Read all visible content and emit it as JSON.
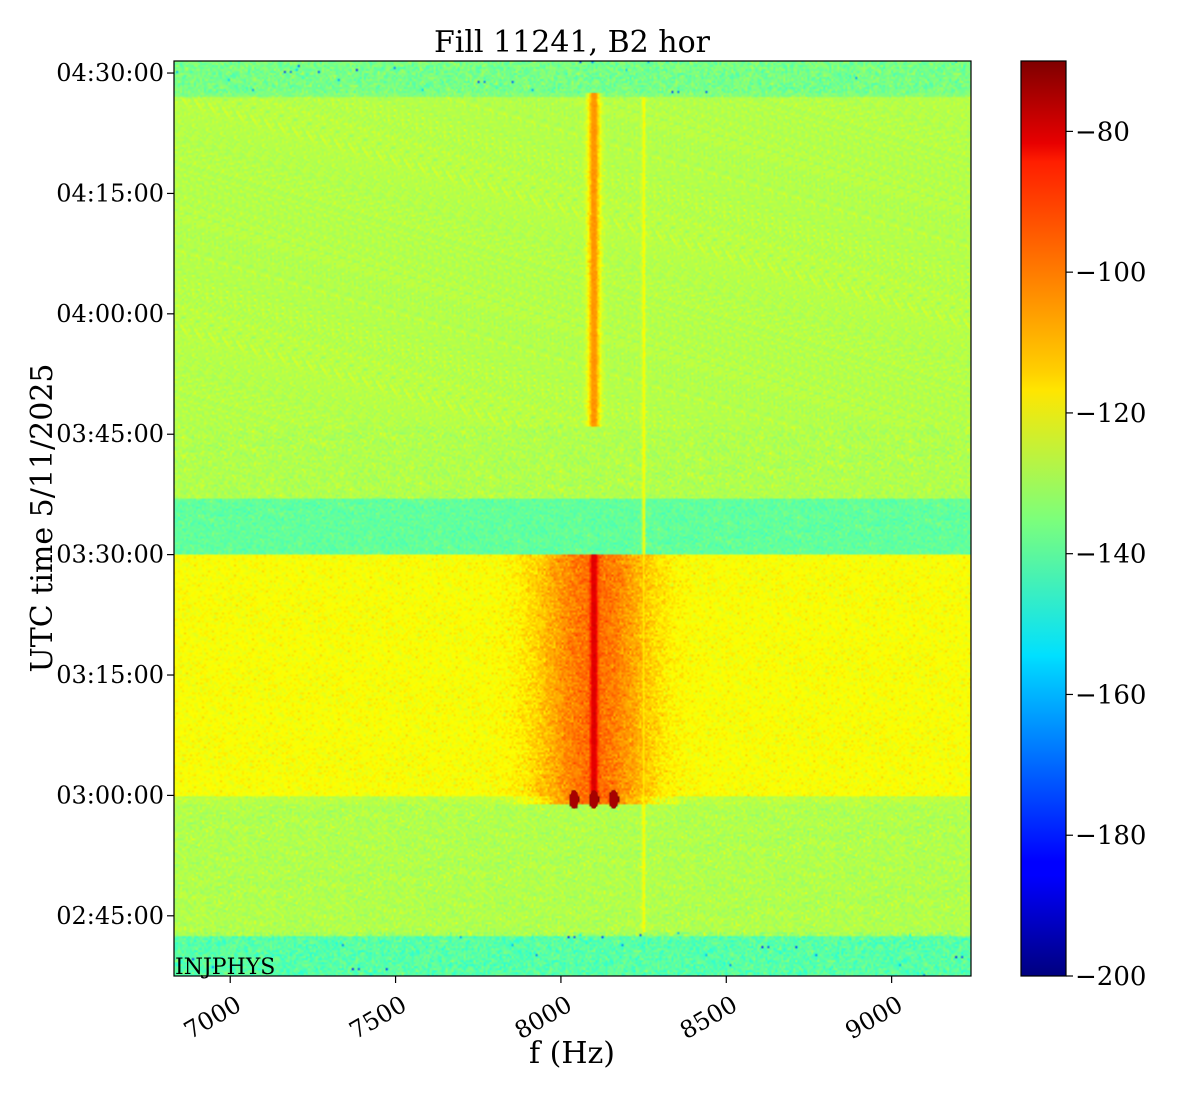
{
  "chart_data": {
    "type": "heatmap",
    "title": "Fill 11241, B2 hor",
    "xlabel": "f (Hz)",
    "ylabel": "UTC time 5/11/2025",
    "annotation": "INJPHYS",
    "xlim": [
      6830,
      9240
    ],
    "x_ticks": [
      7000,
      7500,
      8000,
      8500,
      9000
    ],
    "x_tick_labels": [
      "7000",
      "7500",
      "8000",
      "8500",
      "9000"
    ],
    "ylim_minutes_since_midnight": [
      157.5,
      271.5
    ],
    "y_ticks": [
      165,
      180,
      195,
      210,
      225,
      240,
      255,
      270
    ],
    "y_tick_labels": [
      "02:45:00",
      "03:00:00",
      "03:15:00",
      "03:30:00",
      "03:45:00",
      "04:00:00",
      "04:15:00",
      "04:30:00"
    ],
    "colorscale": "jet",
    "color_range": [
      -200,
      -70
    ],
    "colorbar_ticks": [
      -80,
      -100,
      -120,
      -140,
      -160,
      -180,
      -200
    ],
    "colorbar_tick_labels": [
      "−80",
      "−100",
      "−120",
      "−140",
      "−160",
      "−180",
      "−200"
    ],
    "grid": false,
    "background_level_by_time": [
      {
        "from": "02:37:30",
        "to": "02:42:30",
        "level": -140
      },
      {
        "from": "02:42:30",
        "to": "03:00:00",
        "level": -130
      },
      {
        "from": "03:00:00",
        "to": "03:30:00",
        "level": -122
      },
      {
        "from": "03:30:00",
        "to": "03:37:00",
        "level": -140
      },
      {
        "from": "03:37:00",
        "to": "04:27:00",
        "level": -130
      },
      {
        "from": "04:27:00",
        "to": "04:31:30",
        "level": -136
      }
    ],
    "features": [
      {
        "name": "main line",
        "f_hz": 8100,
        "from": "02:59:00",
        "to": "03:30:00",
        "level": -82
      },
      {
        "name": "main line",
        "f_hz": 8100,
        "from": "03:46:00",
        "to": "04:27:30",
        "level": -105
      },
      {
        "name": "thin line",
        "f_hz": 8250,
        "from": "02:43:00",
        "to": "04:27:00",
        "level": -118
      },
      {
        "name": "burst",
        "f_hz": 8040,
        "time": "02:59:30",
        "level": -75
      },
      {
        "name": "burst",
        "f_hz": 8100,
        "time": "02:59:30",
        "level": -75
      },
      {
        "name": "burst",
        "f_hz": 8160,
        "time": "02:59:30",
        "level": -75
      }
    ]
  }
}
